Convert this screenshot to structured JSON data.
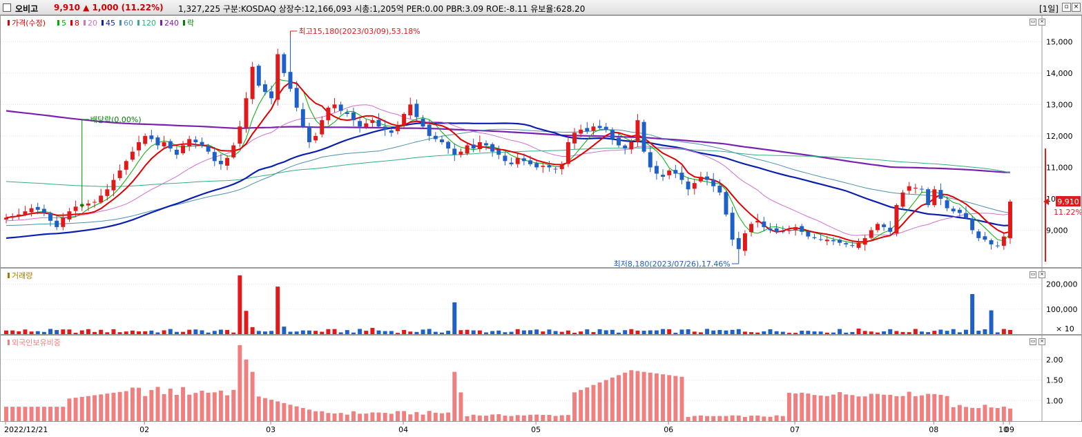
{
  "header": {
    "stock_name": "오비고",
    "price_text": "9,910  ▲ 1,000  (11.22%)",
    "info_text": "1,327,225  구분:KOSDAQ 상장수:12,166,093 시총:1,205억 PER:0.00 PBR:3.09 ROE:-8.11 유보율:628.20",
    "period": "[1일]"
  },
  "colors": {
    "up": "#e0191b",
    "down": "#1f5fc8",
    "ma5": "#00b000",
    "ma8": "#e00000",
    "ma20": "#d070d0",
    "ma45": "#0a1fb0",
    "ma60": "#4a8fb0",
    "ma120": "#30b080",
    "ma240": "#7a20b0",
    "foreign": "#f08080"
  },
  "legend": {
    "items": [
      {
        "label": "가격(수정)",
        "color": "#e00000"
      },
      {
        "label": "5",
        "color": "#00b000"
      },
      {
        "label": "8",
        "color": "#e00000"
      },
      {
        "label": "20",
        "color": "#d070d0"
      },
      {
        "label": "45",
        "color": "#0a1fb0"
      },
      {
        "label": "60",
        "color": "#4a8fb0"
      },
      {
        "label": "120",
        "color": "#30b080"
      },
      {
        "label": "240",
        "color": "#7a20b0"
      },
      {
        "label": "락",
        "color": "#008000"
      }
    ],
    "volume": "거래량",
    "foreign": "외국인보유비중"
  },
  "annotations": {
    "high": "최고15,180(2023/03/09),53.18%",
    "low": "최저8,180(2023/07/26),17.46%",
    "dividend": "배당락(0.00%)"
  },
  "price_tag": {
    "value": "9,910",
    "pct": "11.22%"
  },
  "vol_unit": "× 10",
  "x_labels": [
    "2022/12/21",
    "02",
    "03",
    "04",
    "05",
    "06",
    "07",
    "08",
    "09",
    "10"
  ],
  "chart_data": [
    {
      "type": "candlestick",
      "title": "",
      "ylim": [
        8000,
        15600
      ],
      "y_ticks": [
        "9,000",
        "10,000",
        "11,000",
        "12,000",
        "13,000",
        "14,000",
        "15,000"
      ],
      "y_tick_values": [
        9000,
        10000,
        11000,
        12000,
        13000,
        14000,
        15000
      ],
      "last_close": 9910,
      "closes": [
        9400,
        9450,
        9500,
        9600,
        9700,
        9650,
        9550,
        9300,
        9100,
        9400,
        9600,
        9750,
        9800,
        9850,
        9900,
        10100,
        10300,
        10600,
        10900,
        11200,
        11500,
        11800,
        12000,
        11900,
        11700,
        11800,
        11600,
        11400,
        11700,
        11900,
        11800,
        11700,
        11500,
        11200,
        11100,
        11300,
        11700,
        12300,
        13200,
        14200,
        13600,
        13400,
        13200,
        14600,
        14000,
        13500,
        12900,
        12300,
        11800,
        12000,
        12500,
        12900,
        13000,
        12800,
        12700,
        12500,
        12300,
        12400,
        12500,
        12300,
        12200,
        12100,
        12300,
        12700,
        13000,
        12600,
        12300,
        12000,
        11900,
        11800,
        11600,
        11400,
        11500,
        11700,
        11600,
        11800,
        11700,
        11500,
        11400,
        11200,
        11100,
        11300,
        11200,
        11100,
        11000,
        11050,
        11000,
        10950,
        11100,
        11800,
        12100,
        12200,
        12150,
        12300,
        12250,
        12200,
        11900,
        11700,
        11600,
        11800,
        12500,
        11500,
        11000,
        10800,
        10700,
        10900,
        10800,
        10600,
        10300,
        10500,
        10700,
        10600,
        10400,
        10200,
        9500,
        8700,
        8400,
        8900,
        9200,
        9300,
        9100,
        9000,
        8950,
        8950,
        9000,
        9100,
        8950,
        8800,
        8750,
        8700,
        8700,
        8650,
        8600,
        8550,
        8500,
        8600,
        8750,
        9000,
        9200,
        9100,
        8950,
        9800,
        10200,
        10400,
        10350,
        10300,
        9800,
        10300,
        10000,
        9700,
        9600,
        9550,
        9400,
        9000,
        8750,
        8700,
        8550,
        8500,
        8800,
        9910
      ],
      "ma240_start": 12800
    },
    {
      "type": "bar",
      "title": "",
      "ylabel": "",
      "ylim": [
        0,
        240000
      ],
      "y_ticks": [
        "100,000",
        "200,000"
      ],
      "y_tick_values": [
        100000,
        200000
      ]
    },
    {
      "type": "bar",
      "title": "",
      "ylim": [
        0.5,
        2.45
      ],
      "y_ticks": [
        "1.00",
        "1.50",
        "2.00"
      ],
      "y_tick_values": [
        1.0,
        1.5,
        2.0
      ]
    }
  ]
}
